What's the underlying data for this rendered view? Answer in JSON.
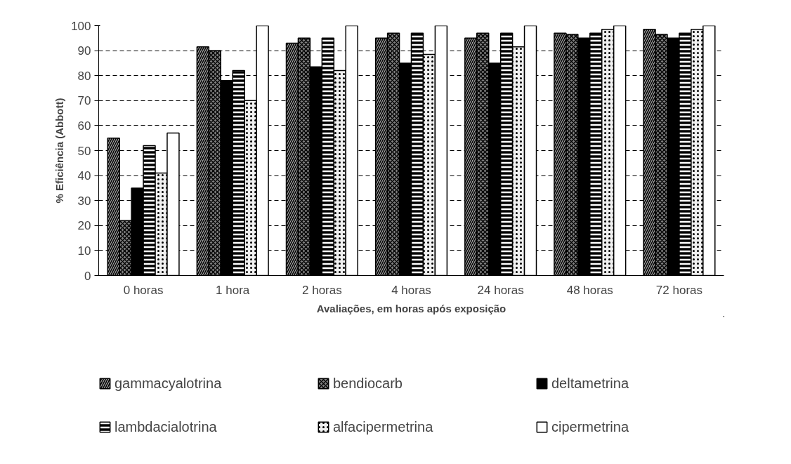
{
  "chart_data": {
    "type": "bar",
    "xlabel": "Avaliações, em horas após exposição",
    "ylabel": "% Eficiência (Abbott)",
    "categories": [
      "0 horas",
      "1 hora",
      "2 horas",
      "4 horas",
      "24 horas",
      "48 horas",
      "72 horas"
    ],
    "series": [
      {
        "name": "gammacyalotrina",
        "color": "#a0a0a0",
        "values": [
          55,
          91.5,
          93,
          95,
          95,
          97,
          98.5
        ]
      },
      {
        "name": "bendiocarb",
        "color": "#808080",
        "values": [
          22,
          90,
          95,
          97,
          97,
          96.5,
          96.5
        ]
      },
      {
        "name": "deltametrina",
        "color": "#000000",
        "values": [
          35,
          78,
          83.5,
          85,
          85,
          95,
          95
        ]
      },
      {
        "name": "lambdacialotrina",
        "color": "#000000",
        "values": [
          52,
          82,
          95,
          97,
          97,
          97,
          97
        ]
      },
      {
        "name": "alfacipermetrina",
        "color": "#f0f0f0",
        "values": [
          41,
          70,
          82,
          88.5,
          91.5,
          98.5,
          98.5
        ]
      },
      {
        "name": "cipermetrina",
        "color": "#ffffff",
        "values": [
          57,
          100,
          100,
          100,
          100,
          100,
          100
        ]
      }
    ],
    "ylim": [
      0,
      100
    ],
    "yticks": [
      0,
      10,
      20,
      30,
      40,
      50,
      60,
      70,
      80,
      90,
      100
    ],
    "grid": "y",
    "legend": "bottom"
  }
}
